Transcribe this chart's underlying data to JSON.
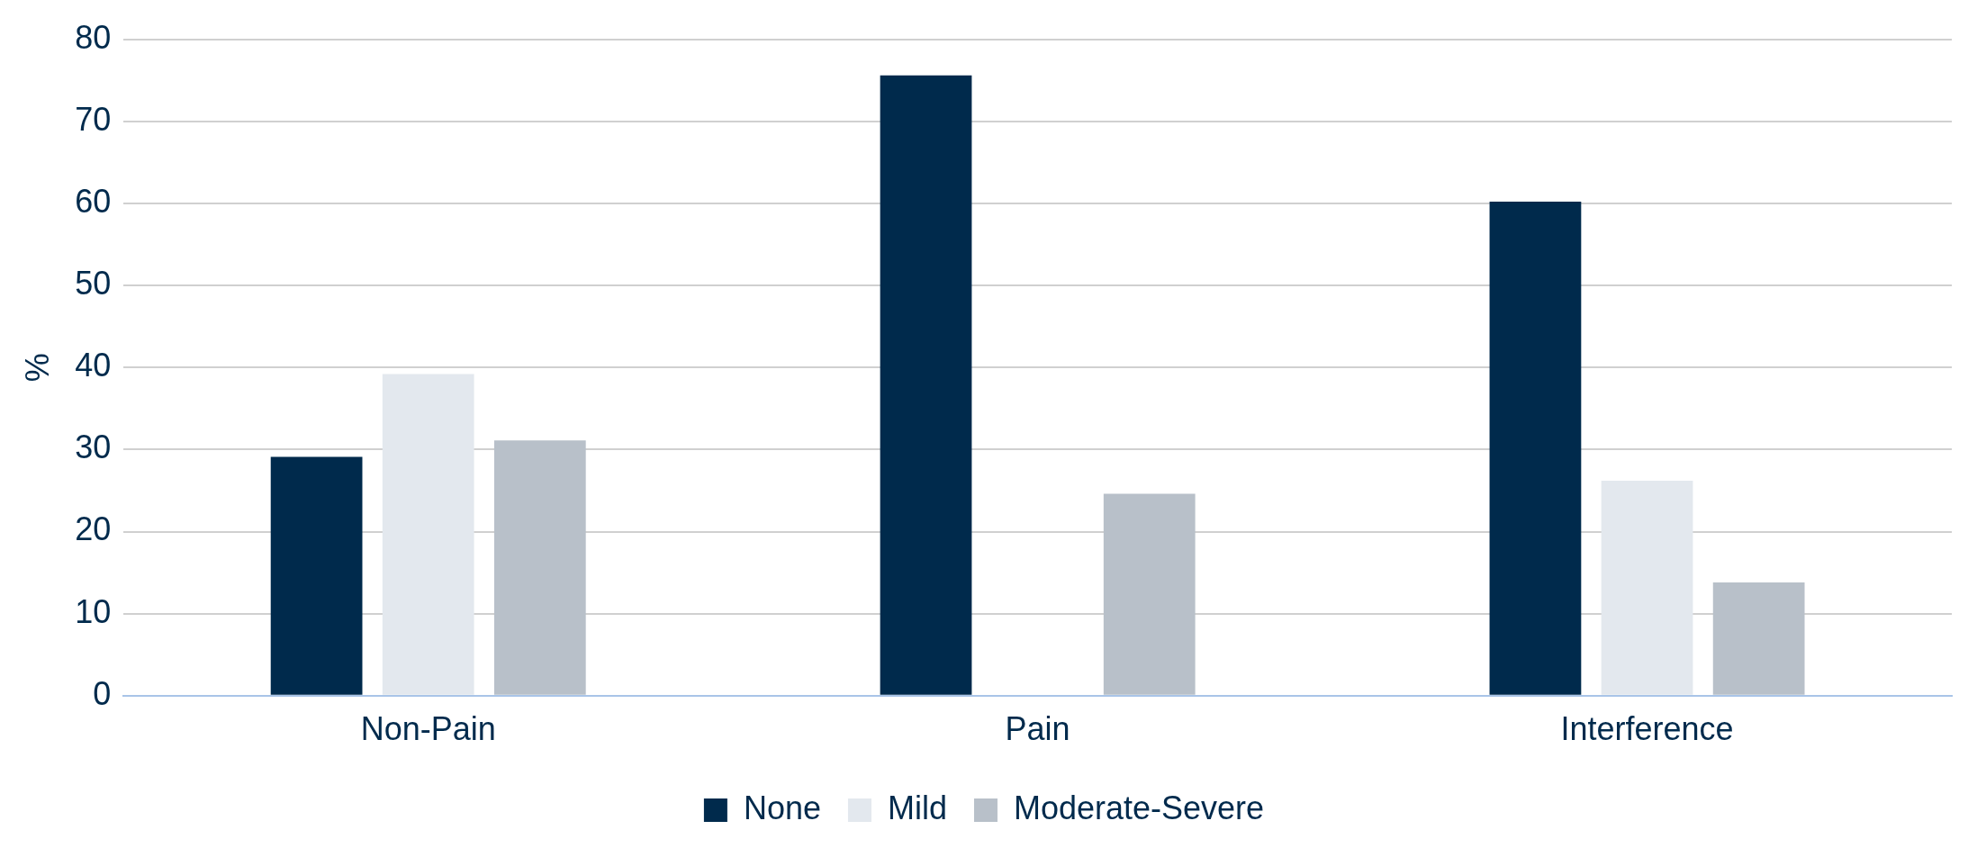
{
  "chart_data": {
    "type": "bar",
    "ylabel": "%",
    "categories": [
      "Non-Pain",
      "Pain",
      "Interference"
    ],
    "series": [
      {
        "name": "None",
        "color": "#002a4c",
        "values": [
          29.1,
          75.6,
          60.2
        ]
      },
      {
        "name": "Mild",
        "color": "#e3e8ee",
        "values": [
          39.2,
          null,
          26.2
        ]
      },
      {
        "name": "Moderate-Severe",
        "color": "#b8c0c9",
        "values": [
          31.1,
          24.6,
          13.8
        ]
      }
    ],
    "ylim": [
      0,
      80
    ],
    "yticks": [
      0,
      10,
      20,
      30,
      40,
      50,
      60,
      70,
      80
    ],
    "grid": "y",
    "legend": "bottom"
  }
}
